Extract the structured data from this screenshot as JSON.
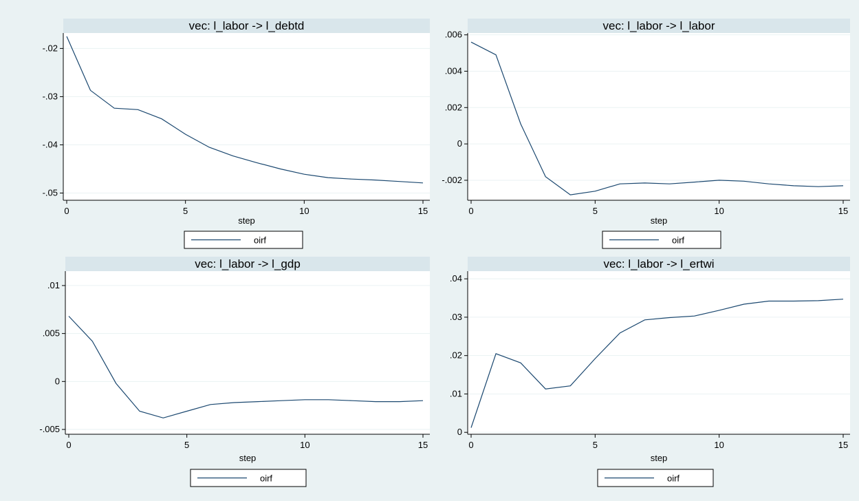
{
  "colors": {
    "background": "#eaf2f3",
    "plot_region": "#ffffff",
    "title_band": "#d9e6eb",
    "line": "#1a476f",
    "grid": "#eaf2f3",
    "text": "#000000"
  },
  "chart_data": [
    {
      "type": "line",
      "title": "vec: l_labor -> l_debtd",
      "xlabel": "step",
      "ylabel": "",
      "xlim": [
        0,
        15
      ],
      "ylim": [
        -0.0515,
        -0.0168
      ],
      "x_ticks": [
        0,
        5,
        10,
        15
      ],
      "x_tick_labels": [
        "0",
        "5",
        "10",
        "15"
      ],
      "y_ticks": [
        -0.05,
        -0.04,
        -0.03,
        -0.02
      ],
      "y_tick_labels": [
        "-.05",
        "-.04",
        "-.03",
        "-.02"
      ],
      "grid": true,
      "legend": {
        "placement": "bottom",
        "entries": [
          "oirf"
        ]
      },
      "series": [
        {
          "name": "oirf",
          "x": [
            0,
            1,
            2,
            3,
            4,
            5,
            6,
            7,
            8,
            9,
            10,
            11,
            12,
            13,
            14,
            15
          ],
          "values": [
            -0.0175,
            -0.0287,
            -0.0324,
            -0.0327,
            -0.0346,
            -0.0378,
            -0.0405,
            -0.0423,
            -0.0437,
            -0.045,
            -0.0461,
            -0.0468,
            -0.0471,
            -0.0473,
            -0.0476,
            -0.0479
          ]
        }
      ]
    },
    {
      "type": "line",
      "title": "vec: l_labor -> l_labor",
      "xlabel": "step",
      "ylabel": "",
      "xlim": [
        0,
        15
      ],
      "ylim": [
        -0.0031,
        0.0061
      ],
      "x_ticks": [
        0,
        5,
        10,
        15
      ],
      "x_tick_labels": [
        "0",
        "5",
        "10",
        "15"
      ],
      "y_ticks": [
        -0.002,
        0,
        0.002,
        0.004,
        0.006
      ],
      "y_tick_labels": [
        "-.002",
        "0",
        ".002",
        ".004",
        ".006"
      ],
      "grid": true,
      "legend": {
        "placement": "bottom",
        "entries": [
          "oirf"
        ]
      },
      "series": [
        {
          "name": "oirf",
          "x": [
            0,
            1,
            2,
            3,
            4,
            5,
            6,
            7,
            8,
            9,
            10,
            11,
            12,
            13,
            14,
            15
          ],
          "values": [
            0.0056,
            0.0049,
            0.0011,
            -0.0018,
            -0.0028,
            -0.0026,
            -0.0022,
            -0.00215,
            -0.0022,
            -0.0021,
            -0.002,
            -0.00205,
            -0.0022,
            -0.0023,
            -0.00235,
            -0.0023
          ]
        }
      ]
    },
    {
      "type": "line",
      "title": "vec: l_labor -> l_gdp",
      "xlabel": "step",
      "ylabel": "",
      "xlim": [
        0,
        15
      ],
      "ylim": [
        -0.0055,
        0.0115
      ],
      "x_ticks": [
        0,
        5,
        10,
        15
      ],
      "x_tick_labels": [
        "0",
        "5",
        "10",
        "15"
      ],
      "y_ticks": [
        -0.005,
        0,
        0.005,
        0.01
      ],
      "y_tick_labels": [
        "-.005",
        "0",
        ".005",
        ".01"
      ],
      "grid": true,
      "legend": {
        "placement": "bottom",
        "entries": [
          "oirf"
        ]
      },
      "series": [
        {
          "name": "oirf",
          "x": [
            0,
            1,
            2,
            3,
            4,
            5,
            6,
            7,
            8,
            9,
            10,
            11,
            12,
            13,
            14,
            15
          ],
          "values": [
            0.0068,
            0.0042,
            -0.0002,
            -0.0031,
            -0.0038,
            -0.0031,
            -0.0024,
            -0.0022,
            -0.0021,
            -0.002,
            -0.0019,
            -0.0019,
            -0.002,
            -0.0021,
            -0.0021,
            -0.002
          ]
        }
      ]
    },
    {
      "type": "line",
      "title": "vec: l_labor -> l_ertwi",
      "xlabel": "step",
      "ylabel": "",
      "xlim": [
        0,
        15
      ],
      "ylim": [
        -0.0005,
        0.042
      ],
      "x_ticks": [
        0,
        5,
        10,
        15
      ],
      "x_tick_labels": [
        "0",
        "5",
        "10",
        "15"
      ],
      "y_ticks": [
        0,
        0.01,
        0.02,
        0.03,
        0.04
      ],
      "y_tick_labels": [
        "0",
        ".01",
        ".02",
        ".03",
        ".04"
      ],
      "grid": true,
      "legend": {
        "placement": "bottom",
        "entries": [
          "oirf"
        ]
      },
      "series": [
        {
          "name": "oirf",
          "x": [
            0,
            1,
            2,
            3,
            4,
            5,
            6,
            7,
            8,
            9,
            10,
            11,
            12,
            13,
            14,
            15
          ],
          "values": [
            0.0012,
            0.0205,
            0.0181,
            0.0113,
            0.0121,
            0.0192,
            0.0259,
            0.0293,
            0.0299,
            0.0303,
            0.0318,
            0.0334,
            0.0342,
            0.0342,
            0.0343,
            0.0347
          ]
        }
      ]
    }
  ]
}
